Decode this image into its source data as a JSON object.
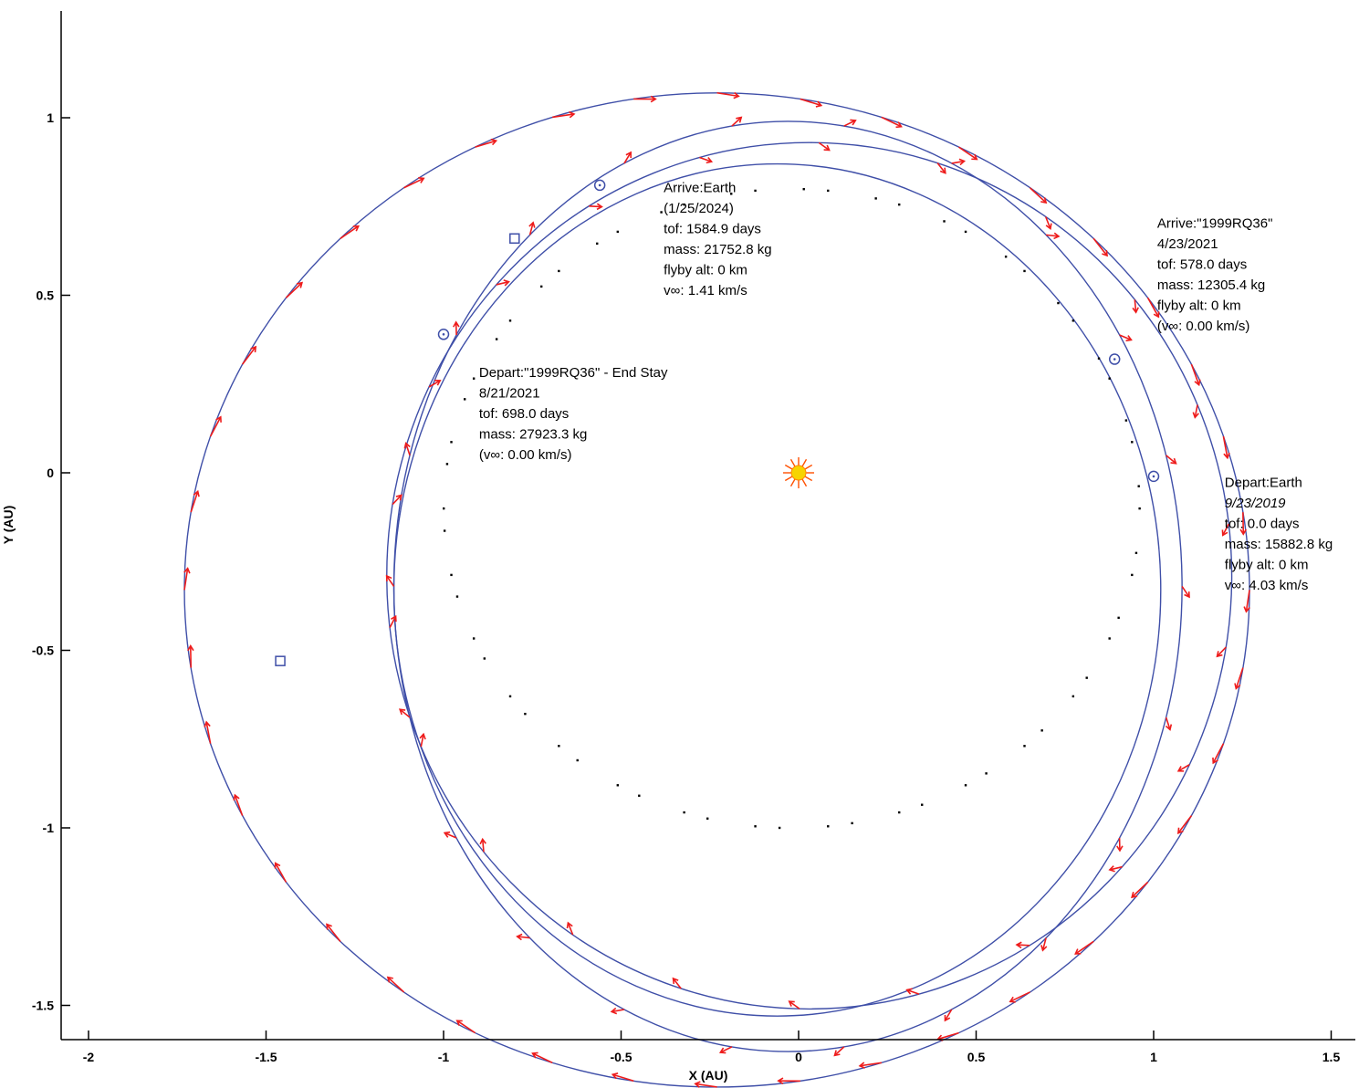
{
  "chart_data": {
    "type": "scatter",
    "title": "",
    "xlabel": "X (AU)",
    "ylabel": "Y (AU)",
    "xlim": [
      -2.0,
      1.5
    ],
    "ylim": [
      -1.5,
      1.0
    ],
    "x_ticks": [
      -2,
      -1.5,
      -1,
      -0.5,
      0,
      0.5,
      1,
      1.5
    ],
    "y_ticks": [
      1,
      0.5,
      0,
      -0.5,
      -1,
      -1.5
    ],
    "x_tick_labels": [
      "-2",
      "-1.5",
      "-1",
      "-0.5",
      "0",
      "0.5",
      "1",
      "1.5"
    ],
    "y_tick_labels": [
      "1",
      "0.5",
      "0",
      "-0.5",
      "-1",
      "-1.5"
    ],
    "grid": false,
    "colors": {
      "trajectory": "#3f4fa8",
      "thrust": "#ee1c1c",
      "sun": "#f6d400",
      "sun_ray": "#ff5000",
      "body_orbit": "#000000"
    },
    "orbits": [
      {
        "name": "outer-transfer",
        "cx": -0.23,
        "cy": -0.33,
        "rx": 1.5,
        "ry": 1.4
      },
      {
        "name": "mid-orbit-a",
        "cx": -0.03,
        "cy": -0.32,
        "rx": 1.11,
        "ry": 1.31
      },
      {
        "name": "mid-orbit-b",
        "cx": 0.03,
        "cy": -0.29,
        "rx": 1.19,
        "ry": 1.22
      },
      {
        "name": "inner-orbit",
        "cx": -0.06,
        "cy": -0.33,
        "rx": 1.08,
        "ry": 1.2
      }
    ],
    "markers": [
      {
        "shape": "circle",
        "x": 1.0,
        "y": -0.01
      },
      {
        "shape": "circle",
        "x": 0.89,
        "y": 0.32
      },
      {
        "shape": "circle",
        "x": -1.0,
        "y": 0.39
      },
      {
        "shape": "circle",
        "x": -0.56,
        "y": 0.81
      },
      {
        "shape": "square",
        "x": -0.8,
        "y": 0.66
      },
      {
        "shape": "square",
        "x": -1.46,
        "y": -0.53
      }
    ],
    "sun": {
      "x": 0.0,
      "y": 0.0
    },
    "annotations": [
      {
        "x": -0.38,
        "y": 0.79,
        "lines": [
          "Arrive:Earth",
          "(1/25/2024)",
          "tof: 1584.9 days",
          "mass: 21752.8 kg",
          "flyby alt: 0 km",
          "v∞: 1.41 km/s"
        ]
      },
      {
        "x": 1.01,
        "y": 0.69,
        "lines": [
          "Arrive:\"1999RQ36\"",
          "4/23/2021",
          "tof: 578.0 days",
          "mass: 12305.4 kg",
          "flyby alt: 0 km",
          "(v∞: 0.00 km/s)"
        ]
      },
      {
        "x": -0.9,
        "y": 0.27,
        "lines": [
          "Depart:\"1999RQ36\" - End Stay",
          "8/21/2021",
          "tof: 698.0 days",
          "mass: 27923.3 kg",
          "(v∞: 0.00 km/s)"
        ]
      },
      {
        "x": 1.2,
        "y": -0.04,
        "italic_line": 1,
        "lines": [
          "Depart:Earth",
          "9/23/2019",
          "tof: 0.0 days",
          "mass: 15882.8 kg",
          "flyby alt: 0 km",
          "v∞: 4.03 km/s"
        ]
      }
    ]
  }
}
